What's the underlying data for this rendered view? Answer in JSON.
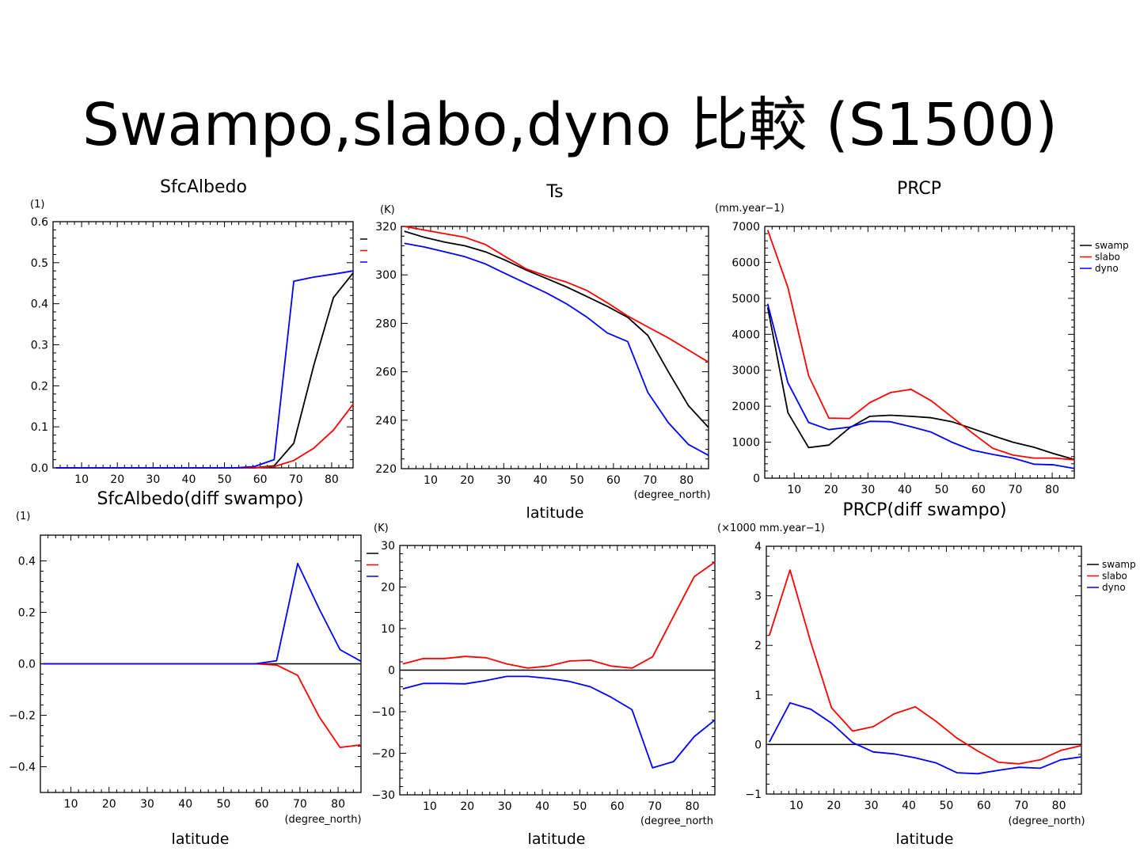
{
  "slide": {
    "title": "Swampo,slabo,dyno 比較 (S1500)"
  },
  "colors": {
    "swamp": "#000000",
    "slabo": "#ff0000",
    "dyno": "#0000ff",
    "zero": "#000000"
  },
  "chart_data": [
    {
      "type": "line",
      "title": "SfcAlbedo",
      "ylabel": "(1)",
      "xlabel": "",
      "xlim": [
        2,
        86
      ],
      "ylim": [
        0,
        0.6
      ],
      "x_ticks": [
        "10",
        "20",
        "30",
        "40",
        "50",
        "60",
        "70",
        "80"
      ],
      "y_ticks": [
        "0.0",
        "0.1",
        "0.2",
        "0.3",
        "0.4",
        "0.5",
        "0.6"
      ],
      "legend": {
        "position": "right",
        "entries": [
          "",
          "",
          ""
        ]
      },
      "x": [
        2.8,
        8.3,
        13.9,
        19.4,
        25,
        30.5,
        36.1,
        41.7,
        47.2,
        52.8,
        58.3,
        63.9,
        69.4,
        75,
        80.5,
        86
      ],
      "series": [
        {
          "key": "swamp",
          "values": [
            0,
            0,
            0,
            0,
            0,
            0,
            0,
            0,
            0,
            0,
            0,
            0.005,
            0.06,
            0.25,
            0.415,
            0.475
          ]
        },
        {
          "key": "slabo",
          "values": [
            0,
            0,
            0,
            0,
            0,
            0,
            0,
            0,
            0,
            0,
            0,
            0.003,
            0.018,
            0.048,
            0.092,
            0.155
          ]
        },
        {
          "key": "dyno",
          "values": [
            0,
            0,
            0,
            0,
            0,
            0,
            0,
            0,
            0,
            0,
            0.003,
            0.02,
            0.455,
            0.465,
            0.472,
            0.48
          ]
        }
      ]
    },
    {
      "type": "line",
      "title": "Ts",
      "ylabel": "(K)",
      "xlabel": "latitude",
      "xunit": "(degree_north)",
      "xlim": [
        2,
        86
      ],
      "ylim": [
        220,
        320
      ],
      "x_ticks": [
        "10",
        "20",
        "30",
        "40",
        "50",
        "60",
        "70",
        "80"
      ],
      "y_ticks": [
        "220",
        "240",
        "260",
        "280",
        "300",
        "320"
      ],
      "x": [
        2.8,
        8.3,
        13.9,
        19.4,
        25,
        30.5,
        36.1,
        41.7,
        47.2,
        52.8,
        58.3,
        63.9,
        69.4,
        75,
        80.5,
        86
      ],
      "series": [
        {
          "key": "swamp",
          "values": [
            318,
            315.5,
            313.5,
            312,
            309.5,
            306,
            302,
            298.5,
            295,
            291,
            287,
            282.5,
            275,
            260,
            246,
            237
          ]
        },
        {
          "key": "slabo",
          "values": [
            320,
            318.5,
            317,
            315.5,
            312.5,
            307.5,
            302.5,
            299.5,
            297,
            293.5,
            288.5,
            283,
            278.5,
            274,
            269,
            264
          ]
        },
        {
          "key": "dyno",
          "values": [
            313,
            311.5,
            309.5,
            307.5,
            304.5,
            300.5,
            296.5,
            292.5,
            288,
            282.5,
            276,
            272.5,
            251.5,
            239,
            230,
            225.5
          ]
        }
      ]
    },
    {
      "type": "line",
      "title": "PRCP",
      "ylabel": "(mm.year−1)",
      "xlabel": "",
      "xlim": [
        2,
        86
      ],
      "ylim": [
        0,
        7000
      ],
      "x_ticks": [
        "10",
        "20",
        "30",
        "40",
        "50",
        "60",
        "70",
        "80"
      ],
      "y_ticks": [
        "0",
        "1000",
        "2000",
        "3000",
        "4000",
        "5000",
        "6000",
        "7000"
      ],
      "legend": {
        "position": "right",
        "entries": [
          "swamp",
          "slabo",
          "dyno"
        ]
      },
      "x": [
        2.8,
        8.3,
        13.9,
        19.4,
        25,
        30.5,
        36.1,
        41.7,
        47.2,
        52.8,
        58.3,
        63.9,
        69.4,
        75,
        80.5,
        86
      ],
      "series": [
        {
          "key": "swamp",
          "values": [
            4750,
            1820,
            850,
            920,
            1400,
            1720,
            1750,
            1720,
            1680,
            1570,
            1380,
            1180,
            1000,
            860,
            680,
            520
          ]
        },
        {
          "key": "slabo",
          "values": [
            6900,
            5300,
            2850,
            1670,
            1660,
            2100,
            2380,
            2470,
            2150,
            1700,
            1260,
            830,
            640,
            560,
            560,
            510
          ]
        },
        {
          "key": "dyno",
          "values": [
            4850,
            2650,
            1550,
            1350,
            1420,
            1580,
            1570,
            1430,
            1280,
            1000,
            780,
            660,
            560,
            390,
            370,
            270
          ]
        }
      ]
    },
    {
      "type": "line",
      "title": "SfcAlbedo(diff swampo)",
      "ylabel": "(1)",
      "xlabel": "latitude",
      "xunit": "(degree_north)",
      "xlim": [
        2,
        86
      ],
      "ylim": [
        -0.5,
        0.5
      ],
      "x_ticks": [
        "10",
        "20",
        "30",
        "40",
        "50",
        "60",
        "70",
        "80"
      ],
      "y_ticks": [
        "−0.4",
        "−0.2",
        "0.0",
        "0.2",
        "0.4"
      ],
      "legend": {
        "position": "right",
        "entries": [
          "",
          "",
          ""
        ]
      },
      "x": [
        2.8,
        8.3,
        13.9,
        19.4,
        25,
        30.5,
        36.1,
        41.7,
        47.2,
        52.8,
        58.3,
        63.9,
        69.4,
        75,
        80.5,
        86
      ],
      "series": [
        {
          "key": "slabo",
          "values": [
            0,
            0,
            0,
            0,
            0,
            0,
            0,
            0,
            0,
            0,
            0,
            -0.005,
            -0.045,
            -0.205,
            -0.325,
            -0.315
          ]
        },
        {
          "key": "dyno",
          "values": [
            0,
            0,
            0,
            0,
            0,
            0,
            0,
            0,
            0,
            0,
            0,
            0.012,
            0.39,
            0.215,
            0.055,
            0.01
          ]
        }
      ]
    },
    {
      "type": "line",
      "title": "",
      "ylabel": "(K)",
      "xlabel": "latitude",
      "xunit": "(degree_north",
      "xlim": [
        2,
        86
      ],
      "ylim": [
        -30,
        30
      ],
      "x_ticks": [
        "10",
        "20",
        "30",
        "40",
        "50",
        "60",
        "70",
        "80"
      ],
      "y_ticks": [
        "−30",
        "−20",
        "−10",
        "0",
        "10",
        "20",
        "30"
      ],
      "x": [
        2.8,
        8.3,
        13.9,
        19.4,
        25,
        30.5,
        36.1,
        41.7,
        47.2,
        52.8,
        58.3,
        63.9,
        69.4,
        75,
        80.5,
        86
      ],
      "series": [
        {
          "key": "slabo",
          "values": [
            1.5,
            2.8,
            2.8,
            3.3,
            3.0,
            1.5,
            0.5,
            1.0,
            2.2,
            2.4,
            1.0,
            0.5,
            3.2,
            13,
            22.5,
            26
          ]
        },
        {
          "key": "dyno",
          "values": [
            -4.5,
            -3.2,
            -3.2,
            -3.3,
            -2.5,
            -1.5,
            -1.5,
            -2.0,
            -2.7,
            -4.0,
            -6.5,
            -9.5,
            -23.5,
            -22,
            -16,
            -12
          ]
        }
      ]
    },
    {
      "type": "line",
      "title": "PRCP(diff swampo)",
      "ylabel": "(×1000 mm.year−1)",
      "xlabel": "latitude",
      "xunit": "(degree_north)",
      "xlim": [
        2,
        86
      ],
      "ylim": [
        -1,
        4
      ],
      "x_ticks": [
        "10",
        "20",
        "30",
        "40",
        "50",
        "60",
        "70",
        "80"
      ],
      "y_ticks": [
        "−1",
        "0",
        "1",
        "2",
        "3",
        "4"
      ],
      "legend": {
        "position": "right",
        "entries": [
          "swamp",
          "slabo",
          "dyno"
        ]
      },
      "x": [
        2.8,
        8.3,
        13.9,
        19.4,
        25,
        30.5,
        36.1,
        41.7,
        47.2,
        52.8,
        58.3,
        63.9,
        69.4,
        75,
        80.5,
        86
      ],
      "series": [
        {
          "key": "slabo",
          "values": [
            2.2,
            3.52,
            2.05,
            0.74,
            0.27,
            0.36,
            0.62,
            0.76,
            0.47,
            0.13,
            -0.13,
            -0.36,
            -0.39,
            -0.31,
            -0.12,
            -0.02
          ]
        },
        {
          "key": "dyno",
          "values": [
            0.05,
            0.84,
            0.71,
            0.43,
            0.04,
            -0.15,
            -0.19,
            -0.27,
            -0.37,
            -0.57,
            -0.59,
            -0.52,
            -0.46,
            -0.48,
            -0.31,
            -0.25
          ]
        }
      ]
    }
  ]
}
